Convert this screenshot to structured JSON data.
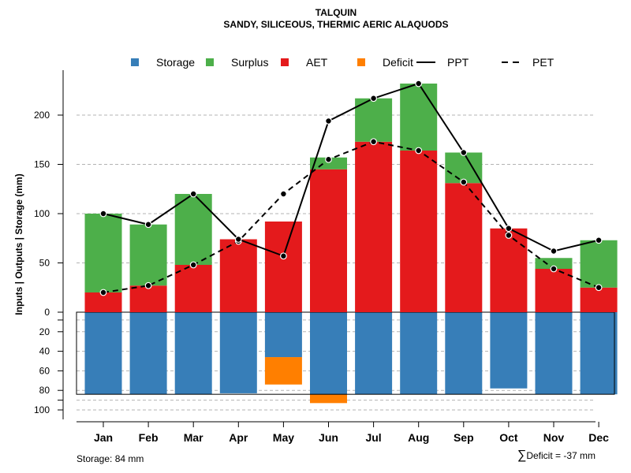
{
  "chart_data": {
    "type": "bar",
    "title": "TALQUIN",
    "subtitle": "SANDY, SILICEOUS, THERMIC AERIC ALAQUODS",
    "ylabel": "Inputs | Outputs | Storage    (mm)",
    "categories": [
      "Jan",
      "Feb",
      "Mar",
      "Apr",
      "May",
      "Jun",
      "Jul",
      "Aug",
      "Sep",
      "Oct",
      "Nov",
      "Dec"
    ],
    "ylim_upper": [
      0,
      235
    ],
    "ylim_lower": [
      0,
      100
    ],
    "upper_ticks": [
      "0",
      "50",
      "100",
      "150",
      "200"
    ],
    "lower_ticks": [
      "20",
      "40",
      "60",
      "80",
      "100"
    ],
    "series": [
      {
        "name": "AET",
        "color": "#E41A1C",
        "values": [
          20,
          27,
          48,
          74,
          92,
          145,
          173,
          164,
          131,
          85,
          44,
          25
        ]
      },
      {
        "name": "Surplus",
        "color": "#4DAF4A",
        "values": [
          80,
          62,
          72,
          0,
          0,
          12,
          44,
          68,
          31,
          0,
          11,
          48
        ]
      },
      {
        "name": "Storage",
        "color": "#377EB8",
        "values": [
          84,
          84,
          84,
          83,
          46,
          84,
          84,
          84,
          84,
          78,
          84,
          84
        ]
      },
      {
        "name": "Deficit",
        "color": "#FF7F00",
        "values": [
          0,
          0,
          0,
          0,
          28,
          9,
          0,
          0,
          0,
          0,
          0,
          0
        ]
      },
      {
        "name": "PPT",
        "style": "solid",
        "values": [
          100,
          89,
          120,
          74,
          57,
          194,
          217,
          232,
          162,
          85,
          62,
          73
        ]
      },
      {
        "name": "PET",
        "style": "dashed",
        "values": [
          20,
          27,
          48,
          72,
          120,
          155,
          173,
          164,
          132,
          78,
          44,
          25
        ]
      }
    ],
    "storage_capacity": 84,
    "legend": [
      {
        "label": "Storage",
        "kind": "box",
        "color": "#377EB8"
      },
      {
        "label": "Surplus",
        "kind": "box",
        "color": "#4DAF4A"
      },
      {
        "label": "AET",
        "kind": "box",
        "color": "#E41A1C"
      },
      {
        "label": "Deficit",
        "kind": "box",
        "color": "#FF7F00"
      },
      {
        "label": "PPT",
        "kind": "solid"
      },
      {
        "label": "PET",
        "kind": "dashed"
      }
    ],
    "legend_position": "top",
    "grid": true
  },
  "footer": {
    "storage_text": "Storage: 84 mm",
    "deficit_symbol": "∑",
    "deficit_text": "Deficit = -37 mm"
  }
}
